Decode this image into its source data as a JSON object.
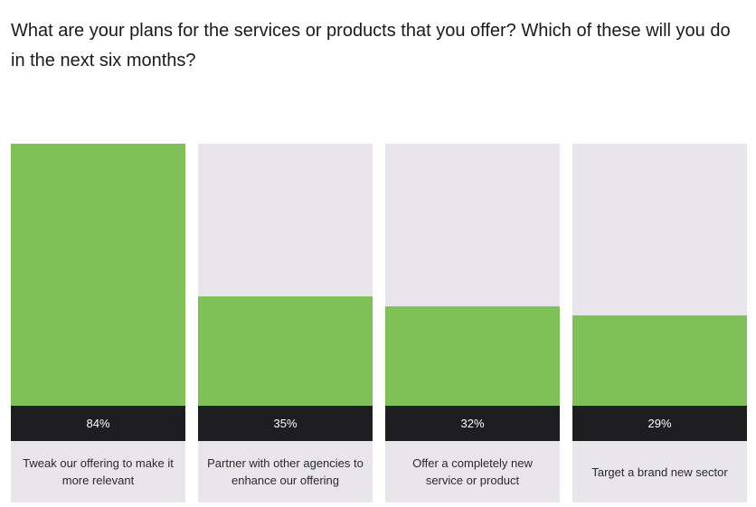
{
  "title": "What are your plans for the services or products that you offer? Which of these will you do in the next six months?",
  "colors": {
    "bar_fill": "#80c157",
    "bar_track": "#e8e6ea",
    "value_strip": "#1e1d20",
    "value_text": "#ffffff"
  },
  "chart_data": {
    "type": "bar",
    "title": "What are your plans for the services or products that you offer? Which of these will you do in the next six months?",
    "categories": [
      "Tweak our offering to make it more relevant",
      "Partner with other agencies to enhance our offering",
      "Offer a completely new service or product",
      "Target a brand new sector"
    ],
    "values": [
      84,
      35,
      32,
      29
    ],
    "value_labels": [
      "84%",
      "35%",
      "32%",
      "29%"
    ],
    "unit": "%",
    "ylim": [
      0,
      84
    ],
    "grid": false,
    "legend": "none"
  }
}
